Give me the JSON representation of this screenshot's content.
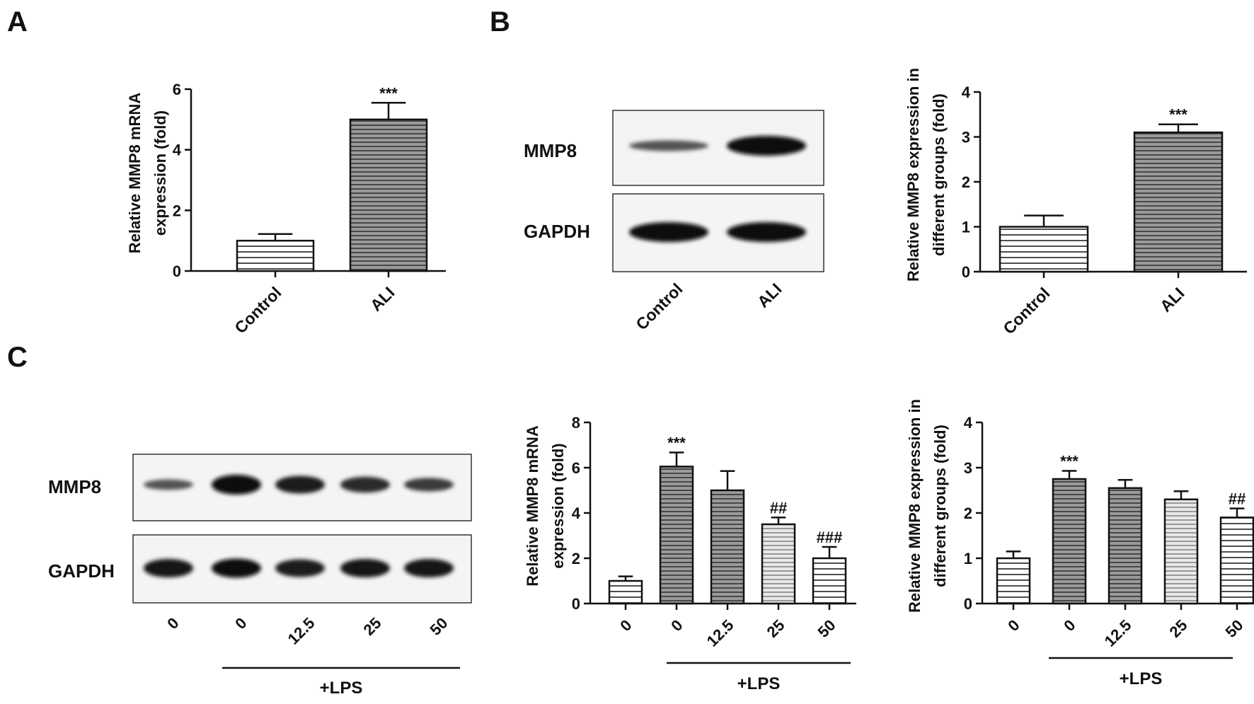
{
  "panels": {
    "a": {
      "letter": "A"
    },
    "b": {
      "letter": "B",
      "blot_labels": [
        "MMP8",
        "GAPDH"
      ],
      "lane_labels": [
        "Control",
        "ALI"
      ]
    },
    "c": {
      "letter": "C",
      "blot_labels": [
        "MMP8",
        "GAPDH"
      ],
      "lane_labels": [
        "0",
        "0",
        "12.5",
        "25",
        "50"
      ],
      "group_label": "+LPS"
    }
  },
  "chart_data": [
    {
      "id": "A-mrna",
      "type": "bar",
      "title": "",
      "ylabel_lines": [
        "Relative MMP8 mRNA",
        "expression (fold)"
      ],
      "categories": [
        "Control",
        "ALI"
      ],
      "values": [
        1.0,
        5.0
      ],
      "errors": [
        0.22,
        0.55
      ],
      "significance": [
        "",
        "***"
      ],
      "ylim": [
        0,
        6
      ],
      "yticks": [
        "0",
        "2",
        "4",
        "6"
      ],
      "fills": [
        "hline-light",
        "hline-dark"
      ],
      "group_label": ""
    },
    {
      "id": "B-protein",
      "type": "bar",
      "title": "",
      "ylabel_lines": [
        "Relative MMP8 expression in",
        "different groups (fold)"
      ],
      "categories": [
        "Control",
        "ALI"
      ],
      "values": [
        1.0,
        3.1
      ],
      "errors": [
        0.25,
        0.18
      ],
      "significance": [
        "",
        "***"
      ],
      "ylim": [
        0,
        4
      ],
      "yticks": [
        "0",
        "1",
        "2",
        "3",
        "4"
      ],
      "fills": [
        "hline-light",
        "hline-dark"
      ],
      "group_label": ""
    },
    {
      "id": "C-mrna",
      "type": "bar",
      "title": "",
      "ylabel_lines": [
        "Relative MMP8 mRNA",
        "expression (fold)"
      ],
      "categories": [
        "0",
        "0",
        "12.5",
        "25",
        "50"
      ],
      "values": [
        1.0,
        6.05,
        5.0,
        3.5,
        2.0
      ],
      "errors": [
        0.2,
        0.62,
        0.85,
        0.3,
        0.5
      ],
      "significance": [
        "",
        "***",
        "",
        "##",
        "###"
      ],
      "ylim": [
        0,
        8
      ],
      "yticks": [
        "0",
        "2",
        "4",
        "6",
        "8"
      ],
      "fills": [
        "hline-light",
        "hline-dark",
        "hline-dark",
        "hline-grey",
        "hline-light"
      ],
      "group_label": "+LPS"
    },
    {
      "id": "C-protein",
      "type": "bar",
      "title": "",
      "ylabel_lines": [
        "Relative MMP8 expression in",
        "different groups (fold)"
      ],
      "categories": [
        "0",
        "0",
        "12.5",
        "25",
        "50"
      ],
      "values": [
        1.0,
        2.75,
        2.55,
        2.3,
        1.9
      ],
      "errors": [
        0.15,
        0.18,
        0.18,
        0.18,
        0.2
      ],
      "significance": [
        "",
        "***",
        "",
        "",
        "##"
      ],
      "ylim": [
        0,
        4
      ],
      "yticks": [
        "0",
        "1",
        "2",
        "3",
        "4"
      ],
      "fills": [
        "hline-light",
        "hline-dark",
        "hline-dark",
        "hline-grey",
        "hline-light"
      ],
      "group_label": "+LPS"
    }
  ],
  "blots": {
    "B": {
      "MMP8": [
        0.35,
        1.0
      ],
      "GAPDH": [
        1.0,
        1.0
      ]
    },
    "C": {
      "MMP8": [
        0.35,
        1.0,
        0.85,
        0.72,
        0.55
      ],
      "GAPDH": [
        0.9,
        0.95,
        0.85,
        0.9,
        0.9
      ]
    }
  }
}
